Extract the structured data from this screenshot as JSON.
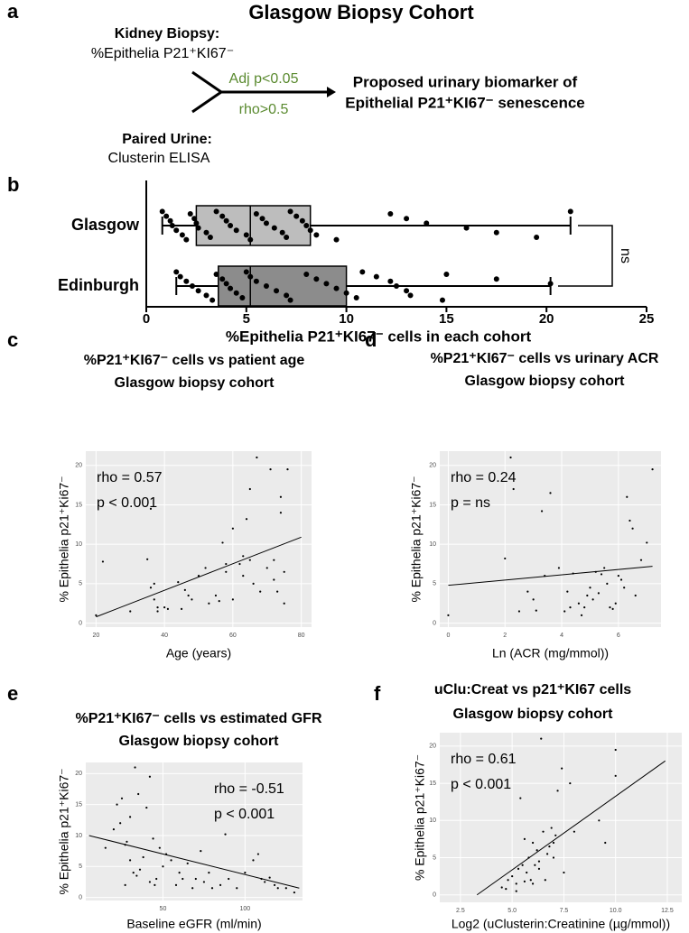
{
  "header": {
    "title": "Glasgow Biopsy Cohort"
  },
  "panel_labels": [
    "a",
    "b",
    "c",
    "d",
    "e",
    "f"
  ],
  "diagram": {
    "input1_title": "Kidney Biopsy:",
    "input1_text": "%Epithelia P21⁺KI67⁻",
    "input2_title": "Paired Urine:",
    "input2_text": "Clusterin ELISA",
    "criterion1": "Adj p<0.05",
    "criterion2": "rho>0.5",
    "output": [
      "Proposed urinary biomarker of",
      "Epithelial P21⁺KI67⁻ senescence"
    ]
  },
  "chart_data": [
    {
      "type": "box",
      "categories": [
        "Glasgow",
        "Edinburgh"
      ],
      "colors": [
        "#bdbdbd",
        "#8c8c8c"
      ],
      "min": [
        0.8,
        1.5
      ],
      "q1": [
        2.5,
        3.6
      ],
      "median": [
        5.2,
        5.2
      ],
      "q3": [
        8.2,
        10
      ],
      "max": [
        21.2,
        20.2
      ],
      "points": [
        [
          0.8,
          1.0,
          1.2,
          1.3,
          1.5,
          1.8,
          2,
          2.2,
          2.4,
          2.5,
          2.6,
          3,
          3.2,
          3.5,
          3.8,
          4,
          4.2,
          4.5,
          5,
          5.2,
          5.5,
          5.8,
          6,
          6.4,
          6.8,
          7,
          7.2,
          7.5,
          7.8,
          8,
          8.2,
          8.5,
          9.5,
          12.2,
          13,
          14,
          16,
          17.5,
          19.5,
          21.2
        ],
        [
          1.5,
          1.7,
          2,
          2.3,
          2.6,
          3,
          3.3,
          3.5,
          3.8,
          4,
          4.2,
          4.5,
          4.8,
          5,
          5.2,
          5.5,
          6,
          6.5,
          7,
          7.2,
          8,
          8.5,
          9,
          9.5,
          10,
          10.5,
          10.8,
          11.5,
          12.2,
          12.5,
          13,
          13.2,
          14.8,
          15,
          17.5,
          20.2
        ]
      ],
      "xlim": [
        0,
        25
      ],
      "xticks": [
        0,
        5,
        10,
        15,
        20,
        25
      ],
      "xlabel": "%Epithelia P21⁺KI67⁻ cells in each cohort",
      "annotation": "ns"
    },
    {
      "type": "scatter",
      "title": "%P21⁺KI67⁻ cells vs patient age",
      "subtitle": "Glasgow biopsy cohort",
      "xlabel": "Age (years)",
      "ylabel": "% Epithelia p21⁺Ki67⁻",
      "x": [
        20,
        22,
        30,
        35,
        36,
        36,
        37,
        37,
        38,
        38,
        40,
        41,
        44,
        46,
        47,
        48,
        50,
        52,
        53,
        55,
        56,
        57,
        58,
        60,
        62,
        63,
        63,
        64,
        65,
        65,
        66,
        67,
        68,
        70,
        71,
        72,
        72,
        73,
        74,
        74,
        75,
        75,
        76,
        60,
        58,
        45
      ],
      "values": [
        1,
        7.8,
        1.5,
        8.1,
        4.5,
        14.5,
        3,
        5,
        2,
        1.5,
        2,
        1.8,
        5.2,
        4.2,
        3.5,
        3,
        6,
        7,
        2.5,
        3.5,
        2.8,
        10.2,
        7.5,
        3,
        7.5,
        6,
        8.5,
        13.2,
        17,
        8,
        5,
        21,
        4,
        7,
        19.5,
        5.5,
        8,
        4,
        14,
        16,
        6.5,
        2.5,
        19.5,
        12,
        6.5,
        1.8
      ],
      "trend_line": {
        "x": [
          20,
          80
        ],
        "values": [
          0.8,
          10.9
        ]
      },
      "xlim": [
        17,
        83
      ],
      "xticks": [
        20,
        40,
        60,
        80
      ],
      "ylim": [
        -0.5,
        21.8
      ],
      "yticks": [
        0,
        5,
        10,
        15,
        20
      ],
      "annotations": [
        "rho = 0.57",
        "p < 0.001"
      ],
      "annotation_corner": "top-left",
      "color": "#000000",
      "background": "#ebebeb",
      "grid": true
    },
    {
      "type": "scatter",
      "title": "%P21⁺KI67⁻ cells vs urinary ACR",
      "subtitle": "Glasgow biopsy cohort",
      "xlabel": "Ln (ACR (mg/mmol))",
      "ylabel": "% Epithelia p21⁺Ki67⁻",
      "x": [
        0,
        2,
        2.2,
        2.3,
        2.5,
        3.3,
        3.4,
        3.6,
        3.9,
        4.1,
        4.2,
        4.3,
        4.6,
        4.7,
        4.8,
        4.9,
        5,
        5.2,
        5.3,
        5.4,
        5.5,
        5.6,
        5.7,
        5.8,
        5.9,
        6,
        6.2,
        6.3,
        6.4,
        6.5,
        6.6,
        6.8,
        7,
        7.2,
        2.8,
        3,
        3.1,
        5.1,
        6.1,
        4.4
      ],
      "values": [
        1,
        8.2,
        21,
        17,
        1.5,
        14.2,
        6,
        16.5,
        7,
        1.5,
        4,
        2,
        2.5,
        1,
        2,
        3.5,
        4.5,
        6.5,
        3.8,
        6.2,
        7,
        5,
        2,
        1.8,
        2.5,
        6,
        4.5,
        16,
        13,
        12,
        3.5,
        8,
        10.2,
        19.5,
        4,
        3,
        1.6,
        3,
        5.5,
        6.3
      ],
      "trend_line": {
        "x": [
          0,
          7.2
        ],
        "values": [
          4.8,
          7.2
        ]
      },
      "xlim": [
        -0.3,
        7.5
      ],
      "xticks": [
        0,
        2,
        4,
        6
      ],
      "ylim": [
        -0.5,
        21.8
      ],
      "yticks": [
        0,
        5,
        10,
        15,
        20
      ],
      "annotations": [
        "rho = 0.24",
        "p = ns"
      ],
      "annotation_corner": "top-left",
      "color": "#000000",
      "background": "#ebebeb",
      "grid": true
    },
    {
      "type": "scatter",
      "title": "%P21⁺KI67⁻ cells vs estimated GFR",
      "subtitle": "Glasgow biopsy cohort",
      "xlabel": "Baseline eGFR (ml/min)",
      "ylabel": "% Epithelia p21⁺Ki67⁻",
      "x": [
        15,
        20,
        22,
        24,
        25,
        27,
        28,
        30,
        30,
        32,
        33,
        35,
        36,
        38,
        40,
        42,
        42,
        44,
        46,
        48,
        50,
        52,
        55,
        58,
        60,
        62,
        65,
        68,
        70,
        73,
        75,
        78,
        80,
        85,
        88,
        90,
        95,
        100,
        105,
        108,
        110,
        112,
        115,
        118,
        120,
        125,
        130,
        27,
        34,
        45
      ],
      "values": [
        8,
        11,
        15,
        12,
        16,
        8.5,
        9,
        13,
        6,
        4,
        21,
        16.7,
        4.5,
        6.5,
        14.5,
        19.5,
        2.5,
        9.5,
        3,
        8,
        5,
        7,
        6,
        2,
        4,
        3,
        5.5,
        1.5,
        3,
        7.5,
        2.5,
        4,
        1.5,
        2,
        10.2,
        3,
        1.5,
        4,
        6,
        7,
        3,
        2.5,
        3.2,
        2,
        1.5,
        1.5,
        0.8,
        2,
        3.5,
        2
      ],
      "trend_line": {
        "x": [
          5,
          133
        ],
        "values": [
          10,
          1.5
        ]
      },
      "xlim": [
        3,
        135
      ],
      "xticks": [
        50,
        100
      ],
      "ylim": [
        -0.5,
        21.8
      ],
      "yticks": [
        0,
        5,
        10,
        15,
        20
      ],
      "annotations": [
        "rho = -0.51",
        "p < 0.001"
      ],
      "annotation_corner": "top-right",
      "color": "#000000",
      "background": "#ebebeb",
      "grid": true
    },
    {
      "type": "scatter",
      "title": "uClu:Creat vs p21⁺KI67 cells",
      "subtitle": "Glasgow biopsy cohort",
      "xlabel": "Log2 (uClusterin:Creatinine (µg/mmol))",
      "ylabel": "% Epithelia p21⁺Ki67⁻",
      "x": [
        4.5,
        4.8,
        5,
        5.2,
        5.3,
        5.4,
        5.5,
        5.6,
        5.7,
        5.8,
        5.9,
        6,
        6.1,
        6.2,
        6.3,
        6.4,
        6.5,
        6.6,
        6.7,
        6.8,
        6.9,
        7,
        7.1,
        7.2,
        7.4,
        7.5,
        7.8,
        8,
        9.2,
        9.5,
        10,
        10,
        5.6,
        5.2,
        4.7,
        6,
        6.3,
        7
      ],
      "values": [
        1,
        2,
        2.5,
        1.5,
        3.5,
        13,
        4,
        7.5,
        3,
        5,
        2,
        7,
        4,
        6,
        3.5,
        21,
        8.5,
        2,
        5.5,
        6.5,
        9,
        7,
        8,
        14,
        17,
        3,
        15,
        8.5,
        10,
        7,
        19.5,
        16,
        1.8,
        0.5,
        0.8,
        1.5,
        4.5,
        5
      ],
      "trend_line": {
        "x": [
          3.3,
          12.4
        ],
        "values": [
          0,
          18
        ]
      },
      "xlim": [
        1.5,
        13.2
      ],
      "xticks": [
        2.5,
        {
          "value": 5,
          "label": "5.0"
        },
        7.5,
        {
          "value": 10,
          "label": "10.0"
        },
        12.5
      ],
      "ylim": [
        -1,
        21.8
      ],
      "yticks": [
        0,
        5,
        10,
        15,
        20
      ],
      "annotations": [
        "rho = 0.61",
        "p < 0.001"
      ],
      "annotation_corner": "top-left",
      "color": "#000000",
      "background": "#ebebeb",
      "grid": true
    }
  ]
}
